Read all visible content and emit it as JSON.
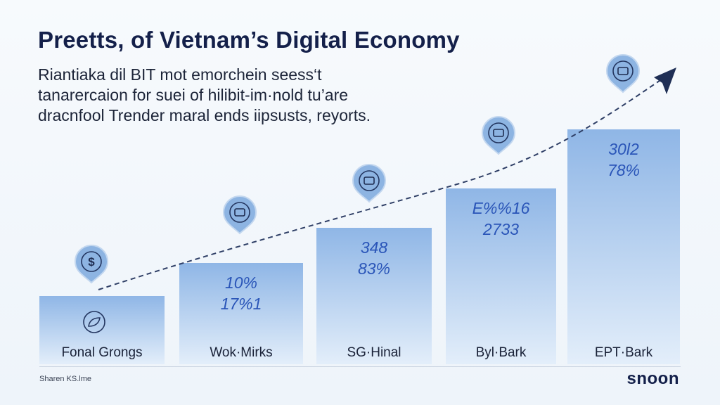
{
  "header": {
    "title": "Preetts, of Vietnam’s Digital Economy",
    "subtitle_lines": [
      "Riantiaka dil BIT mot emorchein seess‘t",
      "tanarercaion for suei of hilibit-im·nold tu’are",
      "dracnfool Trender maral ends iipsusts, reyorts."
    ]
  },
  "footer": {
    "source": "Sharen KS.lme",
    "logo": "snoon"
  },
  "colors": {
    "bar_top": "#8fb6e6",
    "bar_bottom": "#e3eefa",
    "value_text": "#2a55b8",
    "trend_line": "#2f3f66",
    "arrow": "#1f2f55",
    "badge_fill": "#8db4e2"
  },
  "chart_data": {
    "type": "bar",
    "categories": [
      "Fonal Grongs",
      "Wok·Mirks",
      "SG·Hinal",
      "Byl·Bark",
      "EPT·Bark"
    ],
    "values": [
      1,
      2,
      3,
      4,
      5
    ],
    "data_labels": [
      [],
      [
        "10%",
        "17%1"
      ],
      [
        "348",
        "83%"
      ],
      [
        "E%%16",
        "2733"
      ],
      [
        "30l2",
        "78%"
      ]
    ],
    "category_icons": [
      "leaf-icon",
      "",
      "",
      "",
      ""
    ],
    "badge_icons": [
      "dollar-icon",
      "money-icon",
      "exchange-icon",
      "document-icon",
      "wallet-icon"
    ],
    "badge_labels": [
      "$",
      "",
      "",
      "",
      ""
    ],
    "trend": "increasing",
    "legend": "none",
    "grid": false
  }
}
